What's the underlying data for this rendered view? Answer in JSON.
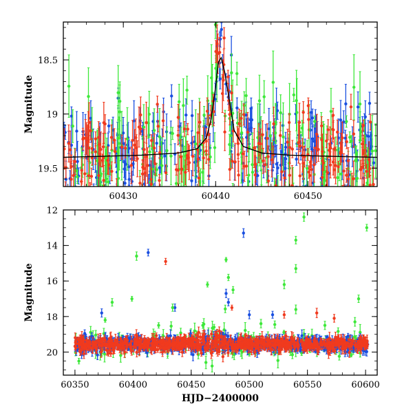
{
  "chart_data": [
    {
      "panel": "top",
      "type": "scatter",
      "title": "",
      "xlabel": "",
      "ylabel": "Magnitude",
      "xlim": [
        60423.5,
        60457.5
      ],
      "ylim": [
        18.15,
        19.67
      ],
      "y_inverted": true,
      "xticks": [
        60430,
        60440,
        60450
      ],
      "yticks": [
        18.5,
        19,
        19.5
      ],
      "grid": false,
      "legend": "none",
      "error_bars": true,
      "colors": {
        "blue": "#1a4fe0",
        "red": "#f03a1e",
        "green": "#3ee83a",
        "model": "#000000"
      },
      "model_curve": {
        "name": "",
        "x": [
          60423.5,
          60428,
          60432,
          60436,
          60438,
          60439,
          60439.5,
          60440,
          60440.3,
          60440.6,
          60441,
          60441.5,
          60442,
          60443,
          60445,
          60448,
          60452,
          60457.5
        ],
        "y": [
          19.4,
          19.39,
          19.38,
          19.36,
          19.32,
          19.22,
          19.05,
          18.75,
          18.52,
          18.48,
          18.62,
          18.88,
          19.15,
          19.3,
          19.36,
          19.38,
          19.39,
          19.4
        ]
      },
      "peak": {
        "x": 60440.5,
        "y": 18.35
      },
      "baseline_magnitude": 19.35,
      "scatter_spread": 0.22,
      "series": [
        {
          "color": "blue",
          "count": 260
        },
        {
          "color": "red",
          "count": 240
        },
        {
          "color": "green",
          "count": 200
        }
      ]
    },
    {
      "panel": "bottom",
      "type": "scatter",
      "title": "",
      "xlabel": "HJD−2400000",
      "ylabel": "Magnitude",
      "xlim": [
        60340,
        60610
      ],
      "ylim": [
        12,
        21.3
      ],
      "y_inverted": true,
      "xticks": [
        60350,
        60400,
        60450,
        60500,
        60550,
        60600
      ],
      "yticks": [
        12,
        14,
        16,
        18,
        20
      ],
      "grid": false,
      "legend": "none",
      "error_bars": true,
      "baseline_magnitude": 19.55,
      "baseline_xrange": [
        60350,
        60602
      ],
      "series": [
        {
          "color": "blue",
          "count": 700
        },
        {
          "color": "red",
          "count": 700
        },
        {
          "color": "green",
          "count": 160
        }
      ],
      "outliers": [
        {
          "color": "blue",
          "x": 60413,
          "y": 14.4
        },
        {
          "color": "blue",
          "x": 60495,
          "y": 13.3
        },
        {
          "color": "blue",
          "x": 60373,
          "y": 17.8
        },
        {
          "color": "blue",
          "x": 60436,
          "y": 17.5
        },
        {
          "color": "blue",
          "x": 60480,
          "y": 16.7
        },
        {
          "color": "blue",
          "x": 60482,
          "y": 17.2
        },
        {
          "color": "blue",
          "x": 60500,
          "y": 17.9
        },
        {
          "color": "blue",
          "x": 60520,
          "y": 17.9
        },
        {
          "color": "red",
          "x": 60428,
          "y": 14.9
        },
        {
          "color": "red",
          "x": 60485,
          "y": 17.5
        },
        {
          "color": "red",
          "x": 60530,
          "y": 17.9
        },
        {
          "color": "red",
          "x": 60558,
          "y": 17.8
        },
        {
          "color": "red",
          "x": 60573,
          "y": 18.1
        },
        {
          "color": "green",
          "x": 60547,
          "y": 12.4
        },
        {
          "color": "green",
          "x": 60601,
          "y": 13.0
        },
        {
          "color": "green",
          "x": 60540,
          "y": 13.7
        },
        {
          "color": "green",
          "x": 60403,
          "y": 14.6
        },
        {
          "color": "green",
          "x": 60480,
          "y": 14.8
        },
        {
          "color": "green",
          "x": 60540,
          "y": 15.3
        },
        {
          "color": "green",
          "x": 60482,
          "y": 15.8
        },
        {
          "color": "green",
          "x": 60464,
          "y": 16.2
        },
        {
          "color": "green",
          "x": 60530,
          "y": 16.2
        },
        {
          "color": "green",
          "x": 60486,
          "y": 16.5
        },
        {
          "color": "green",
          "x": 60399,
          "y": 17.0
        },
        {
          "color": "green",
          "x": 60594,
          "y": 17.0
        },
        {
          "color": "green",
          "x": 60382,
          "y": 17.2
        },
        {
          "color": "green",
          "x": 60434,
          "y": 17.5
        },
        {
          "color": "green",
          "x": 60540,
          "y": 17.6
        },
        {
          "color": "green",
          "x": 60376,
          "y": 18.2
        },
        {
          "color": "green",
          "x": 60422,
          "y": 18.5
        },
        {
          "color": "green",
          "x": 60460,
          "y": 18.5
        },
        {
          "color": "green",
          "x": 60510,
          "y": 18.4
        },
        {
          "color": "green",
          "x": 60565,
          "y": 18.5
        }
      ]
    }
  ]
}
